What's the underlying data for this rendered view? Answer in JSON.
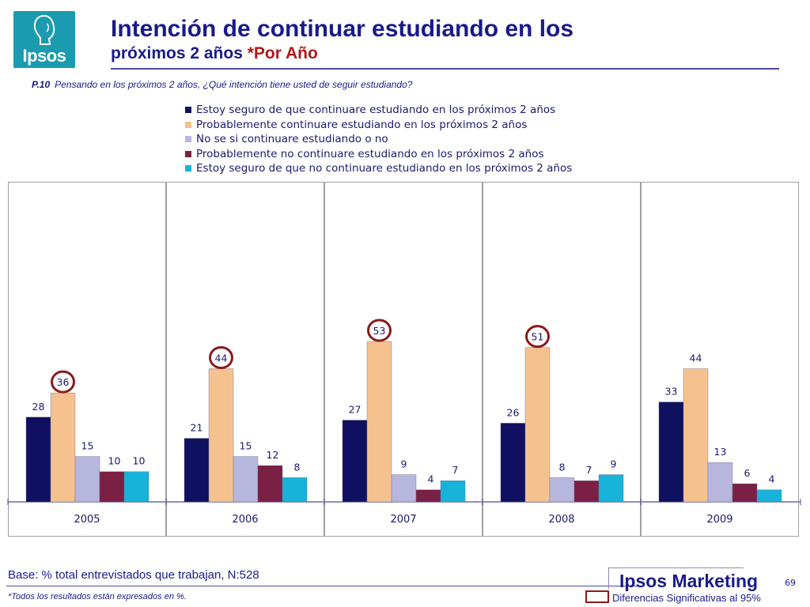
{
  "header": {
    "logo_text": "Ipsos",
    "title_line1": "Intención de continuar estudiando en los",
    "title_line2": "próximos 2 años ",
    "title_accent": "*Por Año"
  },
  "question": {
    "number": "P.10",
    "text": "Pensando en los próximos 2 años, ¿Qué intención tiene usted de seguir estudiando?"
  },
  "colors": {
    "brand_blue": "#1a1a8c",
    "accent_red": "#b01818",
    "highlight_circle": "#8b1a1a"
  },
  "chart_data": {
    "type": "bar",
    "categories": [
      "2005",
      "2006",
      "2007",
      "2008",
      "2009"
    ],
    "series": [
      {
        "name": "Estoy seguro de que continuare estudiando en los próximos 2 años",
        "color": "#101060",
        "values": [
          28,
          21,
          27,
          26,
          33
        ]
      },
      {
        "name": "Probablemente continuare estudiando en los próximos 2 años",
        "color": "#f5c28f",
        "values": [
          36,
          44,
          53,
          51,
          44
        ]
      },
      {
        "name": "No se si continuare estudiando o no",
        "color": "#b7b7dd",
        "values": [
          15,
          15,
          9,
          8,
          13
        ]
      },
      {
        "name": "Probablemente no continuare estudiando en los próximos 2 años",
        "color": "#7a2045",
        "values": [
          10,
          12,
          4,
          7,
          6
        ]
      },
      {
        "name": "Estoy seguro de que no continuare estudiando en los próximos 2 años",
        "color": "#17b3d9",
        "values": [
          10,
          8,
          7,
          9,
          4
        ]
      }
    ],
    "highlighted": [
      {
        "category": "2005",
        "series": 1
      },
      {
        "category": "2006",
        "series": 1
      },
      {
        "category": "2007",
        "series": 1
      },
      {
        "category": "2008",
        "series": 1
      }
    ],
    "legend_position": "top",
    "grid": false,
    "ylim": [
      0,
      100
    ]
  },
  "footer": {
    "base": "Base: % total entrevistados que trabajan, N:528",
    "footnote": "*Todos los resultados están expresados en %.",
    "brand": "Ipsos Marketing",
    "page_number": "69",
    "significance_label": "Diferencias Significativas al 95%"
  }
}
